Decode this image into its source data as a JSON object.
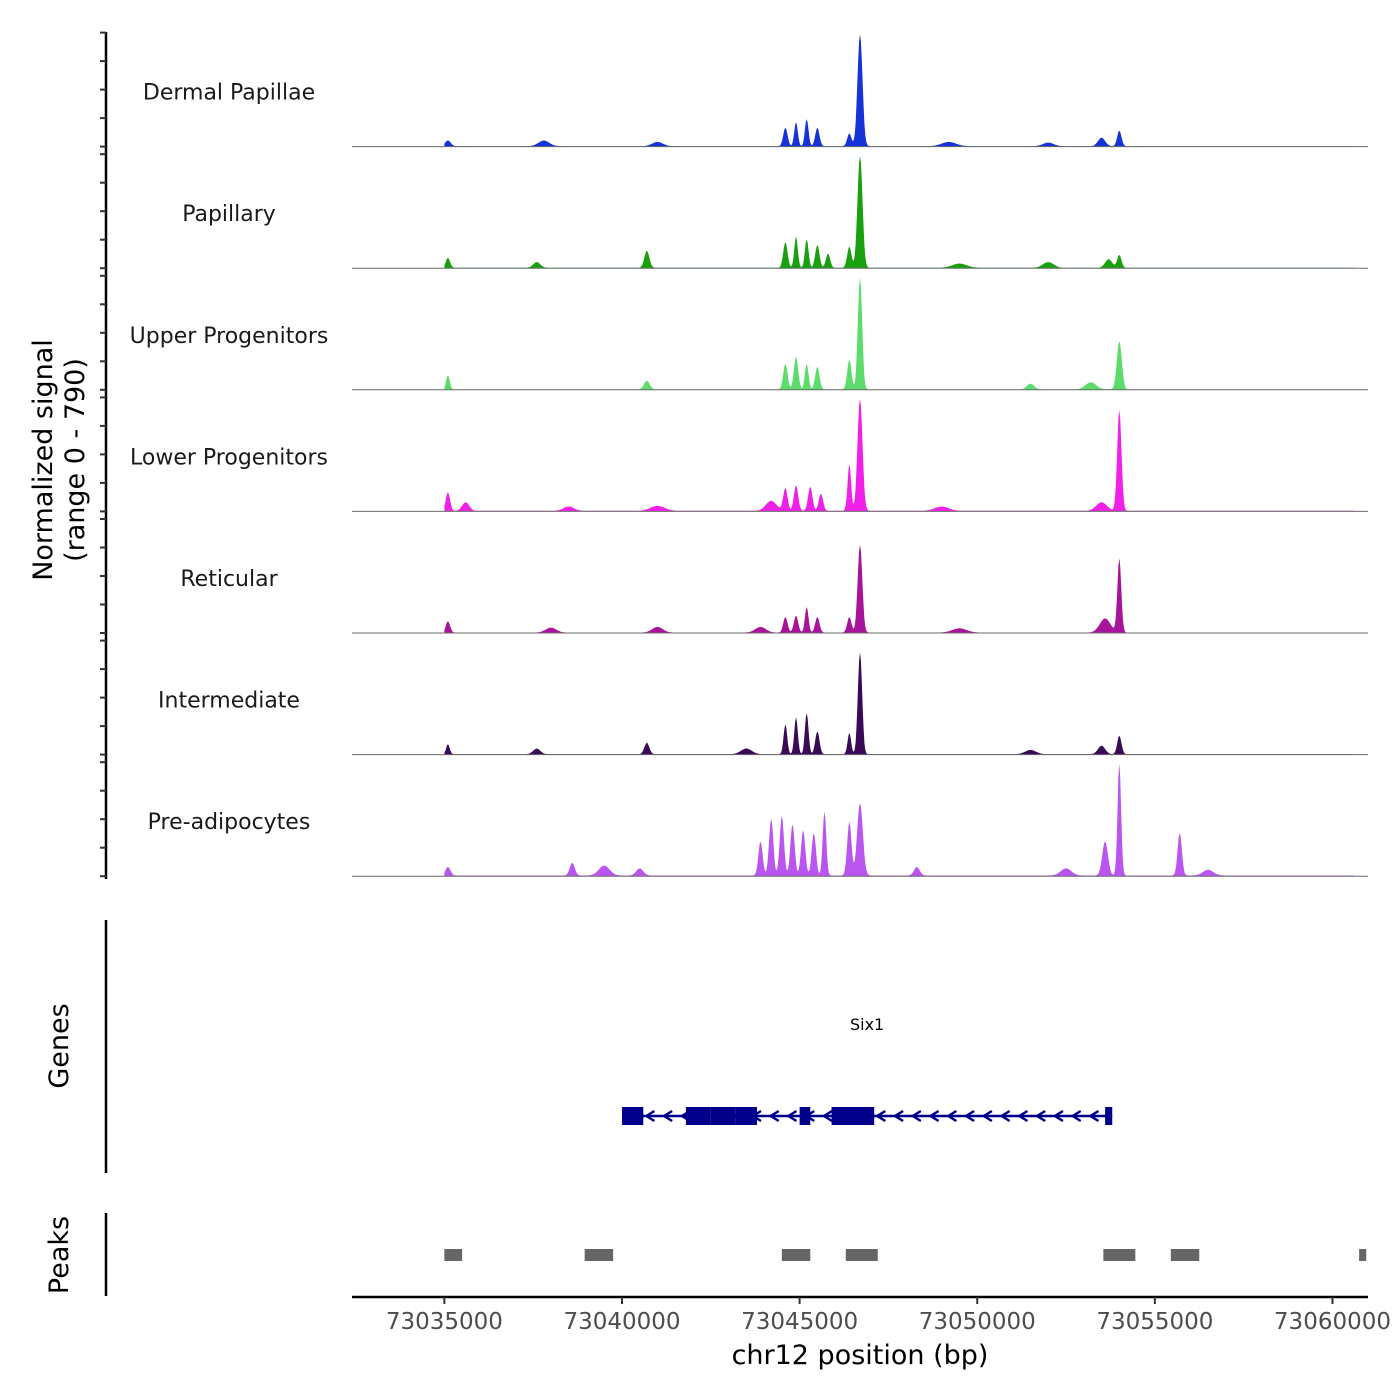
{
  "chart_data": {
    "type": "area",
    "title": "",
    "chromosome": "chr12",
    "xlabel": "chr12 position (bp)",
    "ylabel_line1": "Normalized signal",
    "ylabel_line2": "(range 0 - 790)",
    "genes_label": "Genes",
    "peaks_label": "Peaks",
    "xlim": [
      73032400,
      73061000
    ],
    "ylim": [
      0,
      790
    ],
    "x_ticks": [
      73035000,
      73040000,
      73045000,
      73050000,
      73055000,
      73060000
    ],
    "x_tick_labels": [
      "73035000",
      "73040000",
      "73045000",
      "73050000",
      "73055000",
      "73060000"
    ],
    "signal_start": 73035000,
    "signal_end": 73060600,
    "series": [
      {
        "name": "Dermal Papillae",
        "color": "#1533d6",
        "baseline": 3,
        "peaks": [
          [
            73046700,
            790,
            70
          ],
          [
            73044600,
            130,
            60
          ],
          [
            73044900,
            170,
            50
          ],
          [
            73045200,
            190,
            50
          ],
          [
            73045500,
            130,
            60
          ],
          [
            73046400,
            90,
            60
          ],
          [
            73053500,
            60,
            100
          ],
          [
            73054000,
            110,
            60
          ],
          [
            73035100,
            40,
            80
          ],
          [
            73037800,
            40,
            150
          ],
          [
            73041000,
            30,
            150
          ],
          [
            73049200,
            30,
            200
          ],
          [
            73052000,
            25,
            150
          ]
        ]
      },
      {
        "name": "Papillary",
        "color": "#18a00e",
        "baseline": 3,
        "peaks": [
          [
            73046700,
            790,
            70
          ],
          [
            73044600,
            180,
            60
          ],
          [
            73044900,
            220,
            50
          ],
          [
            73045200,
            200,
            50
          ],
          [
            73045500,
            160,
            60
          ],
          [
            73045800,
            100,
            60
          ],
          [
            73046400,
            150,
            60
          ],
          [
            73053700,
            60,
            100
          ],
          [
            73054000,
            90,
            60
          ],
          [
            73035100,
            70,
            60
          ],
          [
            73040700,
            120,
            70
          ],
          [
            73037600,
            40,
            100
          ],
          [
            73049500,
            30,
            200
          ],
          [
            73052000,
            40,
            150
          ]
        ]
      },
      {
        "name": "Upper Progenitors",
        "color": "#5cdc6a",
        "baseline": 3,
        "peaks": [
          [
            73046700,
            790,
            60
          ],
          [
            73054000,
            340,
            70
          ],
          [
            73035100,
            100,
            50
          ],
          [
            73044600,
            180,
            60
          ],
          [
            73044900,
            230,
            60
          ],
          [
            73045200,
            180,
            50
          ],
          [
            73045500,
            160,
            60
          ],
          [
            73046400,
            210,
            60
          ],
          [
            73040700,
            60,
            80
          ],
          [
            73053200,
            50,
            150
          ],
          [
            73051500,
            40,
            100
          ]
        ]
      },
      {
        "name": "Lower Progenitors",
        "color": "#f020e8",
        "baseline": 4,
        "peaks": [
          [
            73046700,
            790,
            70
          ],
          [
            73054000,
            710,
            60
          ],
          [
            73035100,
            130,
            60
          ],
          [
            73046400,
            330,
            50
          ],
          [
            73044600,
            160,
            60
          ],
          [
            73044900,
            180,
            60
          ],
          [
            73045300,
            170,
            60
          ],
          [
            73045600,
            120,
            60
          ],
          [
            73035600,
            60,
            100
          ],
          [
            73053500,
            60,
            150
          ],
          [
            73044200,
            70,
            150
          ],
          [
            73041000,
            35,
            200
          ],
          [
            73049000,
            30,
            200
          ],
          [
            73038500,
            30,
            150
          ]
        ]
      },
      {
        "name": "Reticular",
        "color": "#a8139c",
        "baseline": 3,
        "peaks": [
          [
            73046700,
            620,
            65
          ],
          [
            73054000,
            520,
            55
          ],
          [
            73035100,
            80,
            60
          ],
          [
            73044600,
            110,
            60
          ],
          [
            73044900,
            120,
            60
          ],
          [
            73045200,
            180,
            50
          ],
          [
            73045500,
            110,
            60
          ],
          [
            73046400,
            110,
            60
          ],
          [
            73053600,
            100,
            150
          ],
          [
            73043900,
            40,
            150
          ],
          [
            73041000,
            40,
            150
          ],
          [
            73038000,
            35,
            150
          ],
          [
            73049500,
            30,
            200
          ]
        ]
      },
      {
        "name": "Intermediate",
        "color": "#3a0958",
        "baseline": 3,
        "peaks": [
          [
            73046700,
            720,
            60
          ],
          [
            73044600,
            210,
            50
          ],
          [
            73044900,
            260,
            50
          ],
          [
            73045200,
            290,
            50
          ],
          [
            73045500,
            160,
            60
          ],
          [
            73046400,
            150,
            50
          ],
          [
            73054000,
            130,
            60
          ],
          [
            73035100,
            70,
            50
          ],
          [
            73040700,
            80,
            70
          ],
          [
            73037600,
            40,
            100
          ],
          [
            73053500,
            60,
            100
          ],
          [
            73051500,
            30,
            150
          ],
          [
            73043500,
            40,
            150
          ]
        ]
      },
      {
        "name": "Pre-adipocytes",
        "color": "#bb55f0",
        "baseline": 5,
        "peaks": [
          [
            73054000,
            790,
            50
          ],
          [
            73046700,
            510,
            80
          ],
          [
            73046400,
            380,
            60
          ],
          [
            73044200,
            400,
            60
          ],
          [
            73044500,
            420,
            60
          ],
          [
            73044800,
            360,
            60
          ],
          [
            73045100,
            320,
            60
          ],
          [
            73045400,
            300,
            60
          ],
          [
            73045700,
            450,
            50
          ],
          [
            73043900,
            240,
            60
          ],
          [
            73055700,
            300,
            60
          ],
          [
            73053600,
            240,
            80
          ],
          [
            73038600,
            90,
            70
          ],
          [
            73035100,
            60,
            70
          ],
          [
            73039500,
            70,
            150
          ],
          [
            73040500,
            50,
            100
          ],
          [
            73048300,
            60,
            80
          ],
          [
            73052500,
            50,
            150
          ],
          [
            73056500,
            40,
            150
          ]
        ]
      }
    ],
    "genes": [
      {
        "name": "Six1",
        "start": 73040000,
        "end": 73053800,
        "strand": "-",
        "color": "#00008b",
        "exons": [
          [
            73040000,
            73040600
          ],
          [
            73041800,
            73042500
          ],
          [
            73042500,
            73043200
          ],
          [
            73043200,
            73043800
          ],
          [
            73045000,
            73045300
          ],
          [
            73045900,
            73047100
          ],
          [
            73053600,
            73053800
          ]
        ]
      }
    ],
    "peaks": [
      [
        73035000,
        73035500
      ],
      [
        73038950,
        73039750
      ],
      [
        73044500,
        73045300
      ],
      [
        73046300,
        73047200
      ],
      [
        73053550,
        73054450
      ],
      [
        73055450,
        73056250
      ],
      [
        73060750,
        73060950
      ]
    ]
  }
}
